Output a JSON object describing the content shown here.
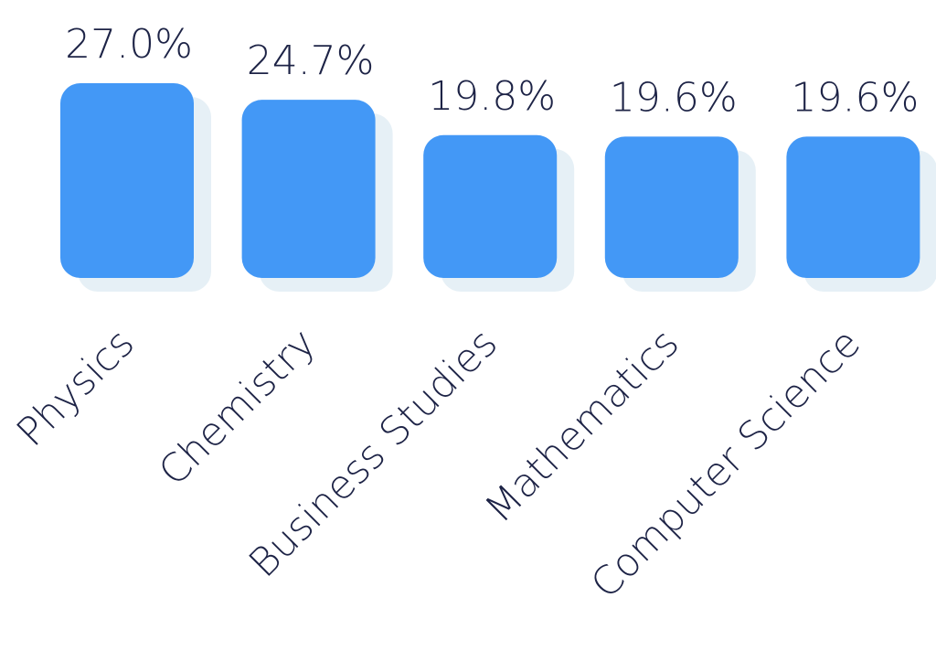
{
  "chart_data": {
    "type": "bar",
    "categories": [
      "Physics",
      "Chemistry",
      "Business Studies",
      "Mathematics",
      "Computer Science"
    ],
    "values": [
      27.0,
      24.7,
      19.8,
      19.6,
      19.6
    ],
    "value_labels": [
      "27.0%",
      "24.7%",
      "19.8%",
      "19.6%",
      "19.6%"
    ],
    "title": "",
    "xlabel": "",
    "ylabel": "",
    "ylim": [
      0,
      27.0
    ],
    "grid": false,
    "colors": {
      "bar": "#4398f6",
      "shadow": "#e6f0f6",
      "text": "#1d2346"
    }
  }
}
